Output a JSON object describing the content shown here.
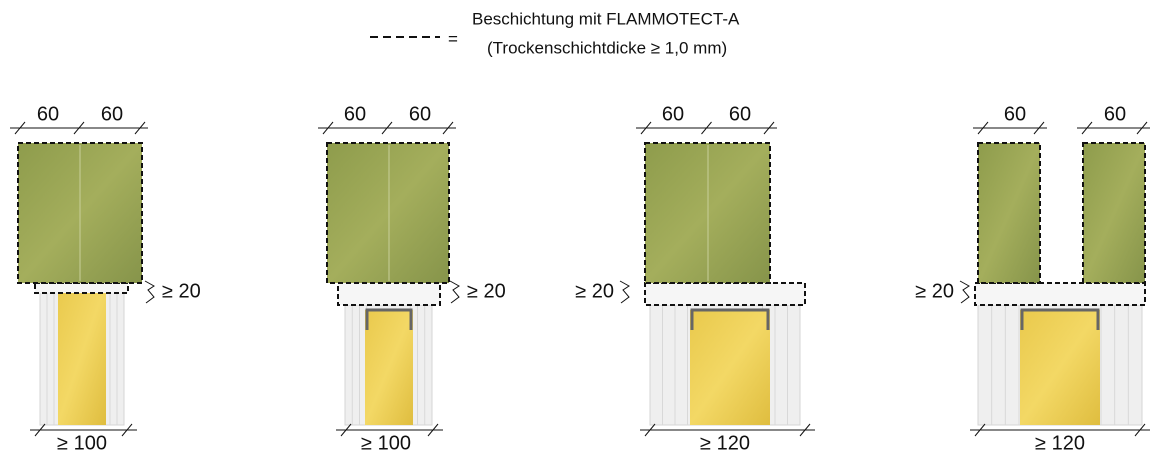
{
  "legend": {
    "equals": "=",
    "line1": "Beschichtung mit FLAMMOTECT-A",
    "line2": "(Trockenschichtdicke ≥ 1,0 mm)"
  },
  "details": [
    {
      "top": [
        "60",
        "60"
      ],
      "gap": "≥ 20",
      "bottom": "≥ 100"
    },
    {
      "top": [
        "60",
        "60"
      ],
      "gap": "≥ 20",
      "bottom": "≥ 100"
    },
    {
      "top": [
        "60",
        "60"
      ],
      "gap": "≥ 20",
      "bottom": "≥ 120"
    },
    {
      "top": [
        "60",
        "60"
      ],
      "gap": "≥ 20",
      "bottom": "≥ 120"
    }
  ]
}
